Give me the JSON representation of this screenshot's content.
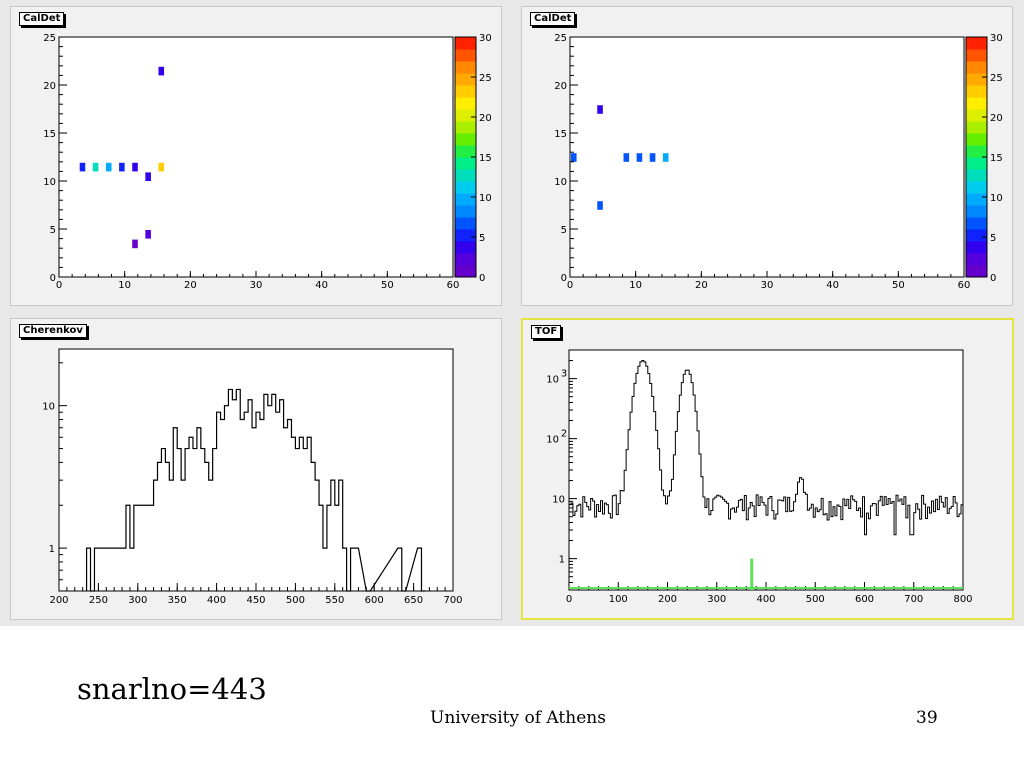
{
  "footer": {
    "note": "snarlno=443",
    "institution": "University of Athens",
    "page": "39"
  },
  "colors": {
    "pad_bg": "#f1f1f1",
    "selected_border": "#e3e43c",
    "tof_baseline": "#59e35a",
    "line": "#000000"
  },
  "chart_data": [
    {
      "id": "caldet1",
      "type": "heatmap",
      "title": "CalDet",
      "xlim": [
        0,
        60
      ],
      "ylim": [
        0,
        25
      ],
      "zlim": [
        0,
        30
      ],
      "xticks": [
        0,
        10,
        20,
        30,
        40,
        50,
        60
      ],
      "yticks": [
        0,
        5,
        10,
        15,
        20,
        25
      ],
      "zticks": [
        0,
        5,
        10,
        15,
        20,
        25,
        30
      ],
      "cells": [
        {
          "x": 15,
          "y": 21,
          "z": 3
        },
        {
          "x": 3,
          "y": 11,
          "z": 5
        },
        {
          "x": 5,
          "y": 11,
          "z": 13
        },
        {
          "x": 7,
          "y": 11,
          "z": 10
        },
        {
          "x": 9,
          "y": 11,
          "z": 5
        },
        {
          "x": 11,
          "y": 11,
          "z": 3
        },
        {
          "x": 13,
          "y": 10,
          "z": 3
        },
        {
          "x": 15,
          "y": 11,
          "z": 23
        },
        {
          "x": 13,
          "y": 4,
          "z": 2
        },
        {
          "x": 11,
          "y": 3,
          "z": 1
        }
      ]
    },
    {
      "id": "caldet2",
      "type": "heatmap",
      "title": "CalDet",
      "xlim": [
        0,
        60
      ],
      "ylim": [
        0,
        25
      ],
      "zlim": [
        0,
        30
      ],
      "xticks": [
        0,
        10,
        20,
        30,
        40,
        50,
        60
      ],
      "yticks": [
        0,
        5,
        10,
        15,
        20,
        25
      ],
      "zticks": [
        0,
        5,
        10,
        15,
        20,
        25,
        30
      ],
      "cells": [
        {
          "x": 4,
          "y": 17,
          "z": 3
        },
        {
          "x": 0,
          "y": 12,
          "z": 6
        },
        {
          "x": 8,
          "y": 12,
          "z": 6
        },
        {
          "x": 10,
          "y": 12,
          "z": 6
        },
        {
          "x": 12,
          "y": 12,
          "z": 6
        },
        {
          "x": 14,
          "y": 12,
          "z": 9
        },
        {
          "x": 4,
          "y": 7,
          "z": 6
        }
      ]
    },
    {
      "id": "cherenkov",
      "type": "histogram",
      "title": "Cherenkov",
      "logy": true,
      "xlim": [
        200,
        700
      ],
      "ylim": [
        0.5,
        25
      ],
      "xticks": [
        200,
        250,
        300,
        350,
        400,
        450,
        500,
        550,
        600,
        650,
        700
      ],
      "yticks": [
        {
          "v": 1,
          "label": "1"
        },
        {
          "v": 10,
          "label": "10"
        }
      ],
      "bin_width": 5,
      "bins": [
        {
          "x": 235,
          "y": 1
        },
        {
          "x": 240,
          "y": 0
        },
        {
          "x": 245,
          "y": 1
        },
        {
          "x": 280,
          "y": 1
        },
        {
          "x": 285,
          "y": 2
        },
        {
          "x": 290,
          "y": 1
        },
        {
          "x": 295,
          "y": 2
        },
        {
          "x": 300,
          "y": 2
        },
        {
          "x": 305,
          "y": 2
        },
        {
          "x": 310,
          "y": 2
        },
        {
          "x": 315,
          "y": 2
        },
        {
          "x": 320,
          "y": 3
        },
        {
          "x": 325,
          "y": 4
        },
        {
          "x": 330,
          "y": 5
        },
        {
          "x": 335,
          "y": 4
        },
        {
          "x": 340,
          "y": 3
        },
        {
          "x": 345,
          "y": 7
        },
        {
          "x": 350,
          "y": 5
        },
        {
          "x": 355,
          "y": 3
        },
        {
          "x": 360,
          "y": 5
        },
        {
          "x": 365,
          "y": 6
        },
        {
          "x": 370,
          "y": 5
        },
        {
          "x": 375,
          "y": 7
        },
        {
          "x": 380,
          "y": 5
        },
        {
          "x": 385,
          "y": 4
        },
        {
          "x": 390,
          "y": 3
        },
        {
          "x": 395,
          "y": 5
        },
        {
          "x": 400,
          "y": 9
        },
        {
          "x": 405,
          "y": 8
        },
        {
          "x": 410,
          "y": 10
        },
        {
          "x": 415,
          "y": 13
        },
        {
          "x": 420,
          "y": 11
        },
        {
          "x": 425,
          "y": 13
        },
        {
          "x": 430,
          "y": 8
        },
        {
          "x": 435,
          "y": 9
        },
        {
          "x": 440,
          "y": 11
        },
        {
          "x": 445,
          "y": 7
        },
        {
          "x": 450,
          "y": 9
        },
        {
          "x": 455,
          "y": 8
        },
        {
          "x": 460,
          "y": 12
        },
        {
          "x": 465,
          "y": 10
        },
        {
          "x": 470,
          "y": 12
        },
        {
          "x": 475,
          "y": 9
        },
        {
          "x": 480,
          "y": 11
        },
        {
          "x": 485,
          "y": 7
        },
        {
          "x": 490,
          "y": 8
        },
        {
          "x": 495,
          "y": 6
        },
        {
          "x": 500,
          "y": 5
        },
        {
          "x": 505,
          "y": 6
        },
        {
          "x": 510,
          "y": 5
        },
        {
          "x": 515,
          "y": 6
        },
        {
          "x": 520,
          "y": 4
        },
        {
          "x": 525,
          "y": 3
        },
        {
          "x": 530,
          "y": 2
        },
        {
          "x": 535,
          "y": 1
        },
        {
          "x": 540,
          "y": 2
        },
        {
          "x": 545,
          "y": 3
        },
        {
          "x": 550,
          "y": 2
        },
        {
          "x": 555,
          "y": 3
        },
        {
          "x": 560,
          "y": 1
        },
        {
          "x": 565,
          "y": 0
        },
        {
          "x": 570,
          "y": 1
        },
        {
          "x": 575,
          "y": 1
        },
        {
          "x": 590,
          "y": 0
        },
        {
          "x": 630,
          "y": 1
        },
        {
          "x": 635,
          "y": 0
        },
        {
          "x": 655,
          "y": 1
        },
        {
          "x": 660,
          "y": 0
        }
      ]
    },
    {
      "id": "tof",
      "type": "histogram",
      "title": "TOF",
      "logy": true,
      "xlim": [
        0,
        800
      ],
      "ylim": [
        0.3,
        3000
      ],
      "xticks": [
        0,
        100,
        200,
        300,
        400,
        500,
        600,
        700,
        800
      ],
      "yticks": [
        {
          "v": 1,
          "label": "1"
        },
        {
          "v": 10,
          "label": "10"
        },
        {
          "v": 100,
          "label": "10^2"
        },
        {
          "v": 1000,
          "label": "10^3"
        }
      ],
      "bin_width": 4,
      "baseline_marker": {
        "x": 370,
        "y": 1
      }
    }
  ]
}
